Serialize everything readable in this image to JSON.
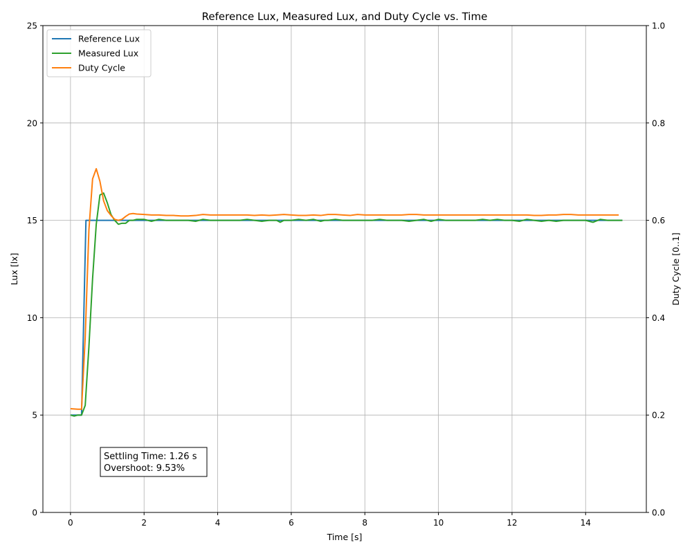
{
  "chart_data": {
    "type": "line",
    "title": "Reference Lux, Measured Lux, and Duty Cycle vs. Time",
    "xlabel": "Time [s]",
    "ylabel": "Lux [lx]",
    "y2label": "Duty Cycle [0..1]",
    "xlim": [
      -0.75,
      15.65
    ],
    "ylim": [
      0,
      25
    ],
    "y2lim": [
      0.0,
      1.0
    ],
    "x_ticks": [
      "0",
      "2",
      "4",
      "6",
      "8",
      "10",
      "12",
      "14"
    ],
    "y_ticks": [
      "0",
      "5",
      "10",
      "15",
      "20",
      "25"
    ],
    "y2_ticks": [
      "0.0",
      "0.2",
      "0.4",
      "0.6",
      "0.8",
      "1.0"
    ],
    "grid": true,
    "legend_position": "top-left",
    "series": [
      {
        "name": "Reference Lux",
        "axis": "left",
        "color": "#1f77b4",
        "x": [
          0,
          0.3,
          0.42,
          0.5,
          15.0
        ],
        "y": [
          5,
          5,
          15,
          15,
          15
        ]
      },
      {
        "name": "Measured Lux",
        "axis": "left",
        "color": "#2ca02c",
        "x": [
          0,
          0.1,
          0.2,
          0.3,
          0.4,
          0.5,
          0.6,
          0.7,
          0.8,
          0.9,
          1.0,
          1.1,
          1.2,
          1.3,
          1.4,
          1.5,
          1.6,
          1.7,
          1.8,
          2.0,
          2.2,
          2.4,
          2.6,
          2.8,
          3.0,
          3.2,
          3.4,
          3.6,
          3.8,
          4.0,
          4.2,
          4.4,
          4.6,
          4.8,
          5.0,
          5.2,
          5.4,
          5.6,
          5.7,
          5.8,
          6.0,
          6.2,
          6.4,
          6.6,
          6.8,
          6.9,
          7.0,
          7.2,
          7.4,
          7.6,
          7.8,
          8.0,
          8.2,
          8.4,
          8.6,
          8.8,
          9.0,
          9.2,
          9.4,
          9.6,
          9.8,
          10.0,
          10.2,
          10.4,
          10.6,
          10.8,
          11.0,
          11.2,
          11.4,
          11.6,
          11.8,
          12.0,
          12.2,
          12.4,
          12.6,
          12.8,
          13.0,
          13.2,
          13.4,
          13.6,
          13.8,
          14.0,
          14.2,
          14.4,
          14.6,
          14.8,
          15.0
        ],
        "y": [
          5.0,
          4.95,
          5.0,
          5.0,
          5.5,
          8.5,
          12.0,
          14.8,
          16.3,
          16.4,
          15.9,
          15.3,
          15.0,
          14.8,
          14.85,
          14.85,
          15.0,
          15.0,
          15.05,
          15.05,
          14.95,
          15.05,
          15.0,
          15.0,
          15.0,
          15.0,
          14.95,
          15.05,
          15.0,
          15.0,
          15.0,
          15.0,
          15.0,
          15.05,
          15.0,
          14.95,
          15.0,
          15.0,
          14.9,
          15.0,
          15.0,
          15.05,
          15.0,
          15.05,
          14.95,
          15.0,
          15.0,
          15.05,
          15.0,
          15.0,
          15.0,
          15.0,
          15.0,
          15.05,
          15.0,
          15.0,
          15.0,
          14.95,
          15.0,
          15.05,
          14.95,
          15.05,
          15.0,
          15.0,
          15.0,
          15.0,
          15.0,
          15.05,
          15.0,
          15.05,
          15.0,
          15.0,
          14.95,
          15.05,
          15.0,
          14.95,
          15.0,
          14.95,
          15.0,
          15.0,
          15.0,
          15.0,
          14.9,
          15.05,
          15.0,
          15.0,
          15.0
        ]
      },
      {
        "name": "Duty Cycle",
        "axis": "right",
        "color": "#ff7f0e",
        "x": [
          0,
          0.2,
          0.3,
          0.4,
          0.5,
          0.6,
          0.7,
          0.8,
          0.9,
          1.0,
          1.1,
          1.2,
          1.3,
          1.4,
          1.5,
          1.6,
          1.7,
          1.8,
          2.0,
          2.2,
          2.4,
          2.6,
          2.8,
          3.0,
          3.2,
          3.4,
          3.6,
          3.8,
          4.0,
          4.2,
          4.4,
          4.6,
          4.8,
          5.0,
          5.2,
          5.4,
          5.6,
          5.8,
          6.0,
          6.2,
          6.4,
          6.6,
          6.8,
          7.0,
          7.2,
          7.4,
          7.6,
          7.8,
          8.0,
          8.2,
          8.4,
          8.6,
          8.8,
          9.0,
          9.2,
          9.4,
          9.6,
          9.8,
          10.0,
          10.2,
          10.4,
          10.6,
          10.8,
          11.0,
          11.2,
          11.4,
          11.6,
          11.8,
          12.0,
          12.2,
          12.4,
          12.6,
          12.8,
          13.0,
          13.2,
          13.4,
          13.6,
          13.8,
          14.0,
          14.2,
          14.4,
          14.6,
          14.8,
          14.9
        ],
        "y": [
          0.213,
          0.212,
          0.212,
          0.36,
          0.58,
          0.685,
          0.706,
          0.68,
          0.64,
          0.62,
          0.61,
          0.602,
          0.6,
          0.602,
          0.608,
          0.613,
          0.614,
          0.613,
          0.612,
          0.611,
          0.611,
          0.61,
          0.61,
          0.609,
          0.609,
          0.61,
          0.612,
          0.611,
          0.611,
          0.611,
          0.611,
          0.611,
          0.611,
          0.61,
          0.611,
          0.61,
          0.611,
          0.612,
          0.611,
          0.61,
          0.61,
          0.611,
          0.61,
          0.612,
          0.612,
          0.611,
          0.61,
          0.612,
          0.611,
          0.611,
          0.611,
          0.611,
          0.611,
          0.611,
          0.612,
          0.612,
          0.611,
          0.611,
          0.611,
          0.611,
          0.611,
          0.611,
          0.611,
          0.611,
          0.611,
          0.611,
          0.611,
          0.611,
          0.611,
          0.611,
          0.611,
          0.61,
          0.61,
          0.611,
          0.611,
          0.612,
          0.612,
          0.611,
          0.611,
          0.611,
          0.611,
          0.611,
          0.611,
          0.611
        ]
      }
    ],
    "annotation": {
      "line1": "Settling Time: 1.26 s",
      "line2": "Overshoot: 9.53%"
    }
  }
}
